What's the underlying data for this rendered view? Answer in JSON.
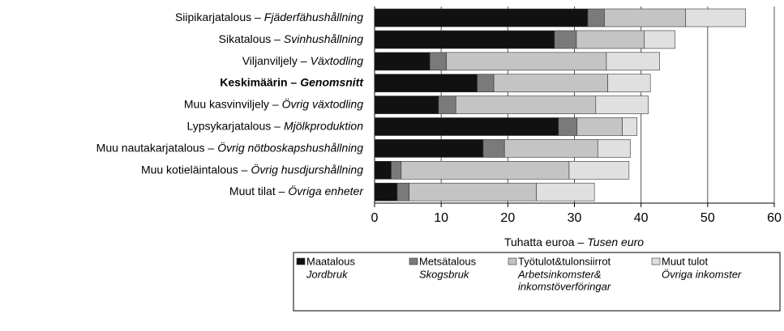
{
  "chart_data": {
    "type": "stacked-barh",
    "categories": [
      [
        "Siipikarjatalous –",
        "Fjäderfähushållning"
      ],
      [
        "Sikatalous –",
        "Svinhushållning"
      ],
      [
        "Viljanviljely –",
        "Växtodling"
      ],
      [
        "Keskimäärin –",
        "Genomsnitt"
      ],
      [
        "Muu kasvinviljely –",
        "Övrig växtodling"
      ],
      [
        "Lypsykarjatalous –",
        "Mjölkproduktion"
      ],
      [
        "Muu nautakarjatalous –",
        "Övrig nötboskapshushållning"
      ],
      [
        "Muu kotieläintalous –",
        "Övrig husdjurshållning"
      ],
      [
        "Muut tilat –",
        "Övriga enheter"
      ]
    ],
    "highlight": 3,
    "series": [
      {
        "name": "Maatalous",
        "name_sv": [
          "Jordbruk"
        ],
        "color": "#111111",
        "values": [
          32,
          27,
          8.3,
          15.4,
          9.6,
          27.6,
          16.3,
          2.5,
          3.4
        ]
      },
      {
        "name": "Metsätalous",
        "name_sv": [
          "Skogsbruk"
        ],
        "color": "#7a7a7a",
        "values": [
          2.5,
          3.3,
          2.5,
          2.5,
          2.6,
          2.8,
          3.2,
          1.5,
          1.8
        ]
      },
      {
        "name": "Työtulot&tulonsiirrot",
        "name_sv": [
          "Arbetsinkomster&",
          "inkomstöverföringar"
        ],
        "color": "#c4c4c4",
        "values": [
          12.2,
          10.2,
          24,
          17.1,
          21,
          6.8,
          14,
          25.2,
          19.1
        ]
      },
      {
        "name": "Muut tulot",
        "name_sv": [
          "Övriga inkomster"
        ],
        "color": "#e0e0e0",
        "values": [
          9,
          4.6,
          8,
          6.4,
          7.9,
          2.2,
          4.9,
          9,
          8.7
        ]
      }
    ],
    "xlabel": [
      "Tuhatta euroa –",
      "Tusen euro"
    ],
    "xlim": [
      0,
      60
    ],
    "xticks": [
      0,
      10,
      20,
      30,
      40,
      50,
      60
    ],
    "grid": true
  }
}
